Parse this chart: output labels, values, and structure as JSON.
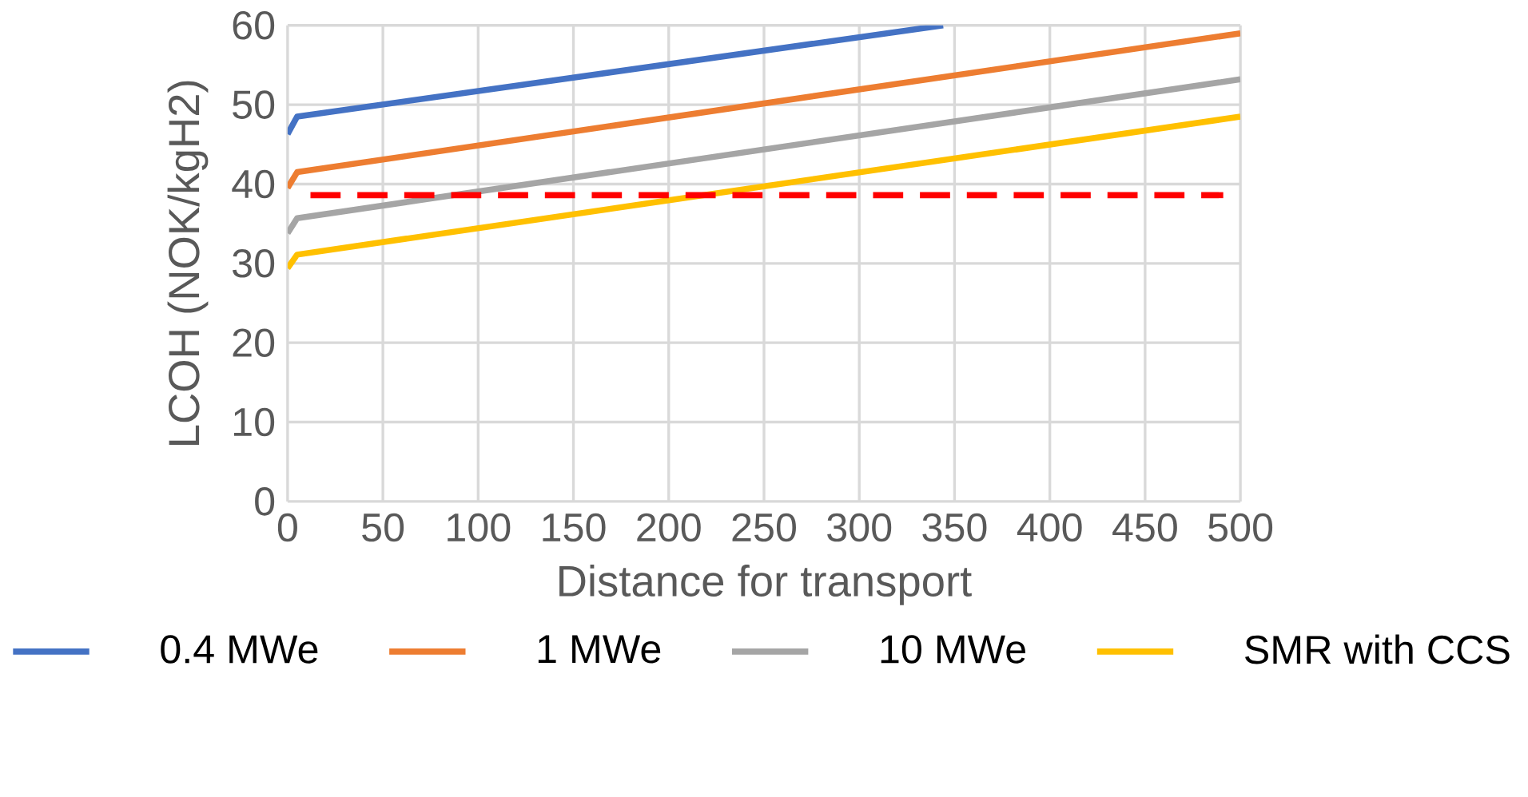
{
  "chart_data": {
    "type": "line",
    "xlabel": "Distance for transport",
    "ylabel": "LCOH (NOK/kgH2)",
    "xlim": [
      0,
      500
    ],
    "xticks": [
      0,
      50,
      100,
      150,
      200,
      250,
      300,
      350,
      400,
      450,
      500
    ],
    "ylim": [
      0,
      60
    ],
    "yticks": [
      0,
      10,
      20,
      30,
      40,
      50,
      60
    ],
    "grid": true,
    "legend": "bottom",
    "line_style": "solid",
    "series": [
      {
        "name": "0.4 MWe",
        "color": "#4472c4",
        "x": [
          0,
          5,
          344
        ],
        "values": [
          46.3,
          48.5,
          60
        ]
      },
      {
        "name": "1 MWe",
        "color": "#ed7d31",
        "x": [
          0,
          5,
          500
        ],
        "values": [
          39.5,
          41.5,
          59.0
        ]
      },
      {
        "name": "10 MWe",
        "color": "#a5a5a5",
        "x": [
          0,
          5,
          500
        ],
        "values": [
          33.8,
          35.7,
          53.2
        ]
      },
      {
        "name": "SMR with CCS",
        "color": "#ffc000",
        "x": [
          0,
          5,
          500
        ],
        "values": [
          29.4,
          31.1,
          48.5
        ]
      },
      {
        "color": "#ff0000",
        "line_style": "dashed",
        "x": [
          12,
          491
        ],
        "values": [
          38.6,
          38.6
        ]
      }
    ]
  }
}
